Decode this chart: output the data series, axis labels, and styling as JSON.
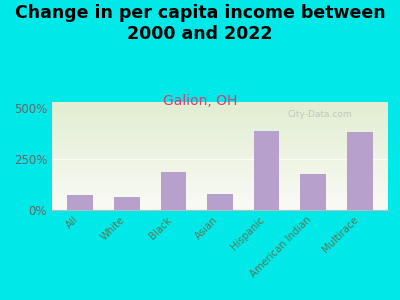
{
  "title": "Change in per capita income between\n2000 and 2022",
  "subtitle": "Galion, OH",
  "categories": [
    "All",
    "White",
    "Black",
    "Asian",
    "Hispanic",
    "American Indian",
    "Multirace"
  ],
  "values": [
    75,
    65,
    185,
    80,
    390,
    175,
    385
  ],
  "bar_color": "#b8a0cc",
  "title_fontsize": 12.5,
  "subtitle_fontsize": 10,
  "subtitle_color": "#cc4477",
  "background_color": "#00e8e8",
  "ylabel_color": "#666666",
  "xlabel_color": "#557755",
  "yticks": [
    0,
    250,
    500
  ],
  "ylim": [
    0,
    530
  ],
  "watermark": "City-Data.com"
}
